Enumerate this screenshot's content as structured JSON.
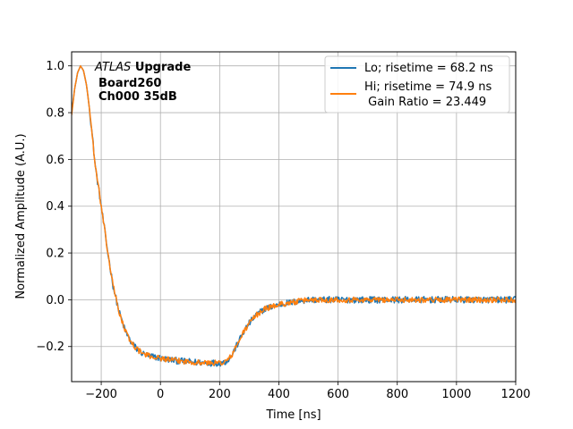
{
  "chart_data": {
    "type": "line",
    "xlabel": "Time [ns]",
    "ylabel": "Normalized Amplitude (A.U.)",
    "xlim": [
      -300,
      1200
    ],
    "ylim": [
      -0.35,
      1.06
    ],
    "xticks": [
      -200,
      0,
      200,
      400,
      600,
      800,
      1000,
      1200
    ],
    "xtick_labels": [
      "−200",
      "0",
      "200",
      "400",
      "600",
      "800",
      "1000",
      "1200"
    ],
    "yticks": [
      -0.2,
      0.0,
      0.2,
      0.4,
      0.6,
      0.8,
      1.0
    ],
    "ytick_labels": [
      "−0.2",
      "0.0",
      "0.2",
      "0.4",
      "0.6",
      "0.8",
      "1.0"
    ],
    "grid": true,
    "legend_position": "top-right",
    "annotation": {
      "atlas": "ATLAS",
      "upgrade": "Upgrade",
      "board": "Board260",
      "channel": "Ch000 35dB"
    },
    "series": [
      {
        "name": "Lo; risetime = 68.2 ns",
        "color": "#1f77b4",
        "noise": 0.014,
        "x": [
          -300,
          -290,
          -280,
          -270,
          -260,
          -250,
          -240,
          -230,
          -220,
          -200,
          -180,
          -160,
          -140,
          -120,
          -100,
          -80,
          -60,
          -40,
          -20,
          0,
          50,
          100,
          150,
          200,
          220,
          240,
          260,
          280,
          300,
          320,
          350,
          400,
          450,
          500,
          600,
          700,
          800,
          900,
          1000,
          1100,
          1200
        ],
        "y": [
          0.8,
          0.9,
          0.97,
          1.0,
          0.98,
          0.92,
          0.82,
          0.7,
          0.57,
          0.4,
          0.22,
          0.06,
          -0.05,
          -0.13,
          -0.18,
          -0.21,
          -0.23,
          -0.24,
          -0.245,
          -0.25,
          -0.26,
          -0.265,
          -0.27,
          -0.27,
          -0.265,
          -0.24,
          -0.19,
          -0.14,
          -0.1,
          -0.07,
          -0.04,
          -0.02,
          -0.01,
          0.0,
          0.0,
          0.0,
          0.0,
          0.0,
          0.0,
          0.0,
          0.0
        ]
      },
      {
        "name": "Hi; risetime = 74.9 ns",
        "name_line2": " Gain Ratio = 23.449",
        "color": "#ff7f0e",
        "noise": 0.012,
        "x": [
          -300,
          -290,
          -280,
          -270,
          -260,
          -250,
          -240,
          -230,
          -220,
          -200,
          -180,
          -160,
          -140,
          -120,
          -100,
          -80,
          -60,
          -40,
          -20,
          0,
          50,
          100,
          150,
          200,
          220,
          240,
          260,
          280,
          300,
          320,
          350,
          400,
          450,
          500,
          600,
          700,
          800,
          900,
          1000,
          1100,
          1200
        ],
        "y": [
          0.79,
          0.9,
          0.97,
          1.0,
          0.98,
          0.92,
          0.82,
          0.7,
          0.57,
          0.4,
          0.22,
          0.06,
          -0.05,
          -0.13,
          -0.18,
          -0.21,
          -0.23,
          -0.24,
          -0.245,
          -0.25,
          -0.26,
          -0.265,
          -0.27,
          -0.27,
          -0.265,
          -0.24,
          -0.19,
          -0.14,
          -0.1,
          -0.07,
          -0.04,
          -0.02,
          -0.01,
          0.0,
          0.0,
          0.0,
          0.0,
          0.0,
          0.0,
          0.0,
          0.0
        ]
      }
    ]
  }
}
